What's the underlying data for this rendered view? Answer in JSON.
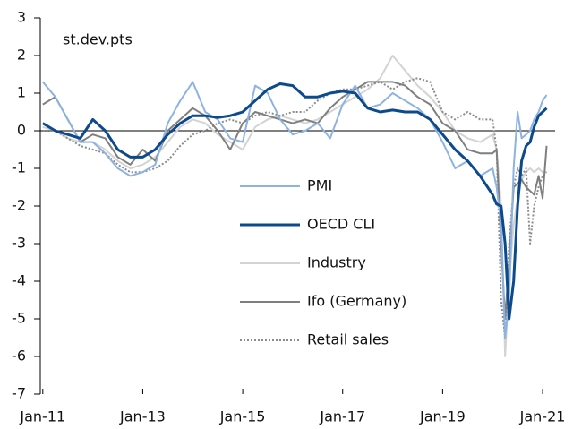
{
  "chart_data": {
    "type": "line",
    "annotation": "st.dev.pts",
    "x": [
      2011,
      2011.25,
      2011.5,
      2011.75,
      2012,
      2012.25,
      2012.5,
      2012.75,
      2013,
      2013.25,
      2013.5,
      2013.75,
      2014,
      2014.25,
      2014.5,
      2014.75,
      2015,
      2015.25,
      2015.5,
      2015.75,
      2016,
      2016.25,
      2016.5,
      2016.75,
      2017,
      2017.25,
      2017.5,
      2017.75,
      2018,
      2018.25,
      2018.5,
      2018.75,
      2019,
      2019.25,
      2019.5,
      2019.75,
      2020,
      2020.08,
      2020.17,
      2020.25,
      2020.33,
      2020.42,
      2020.5,
      2020.58,
      2020.67,
      2020.75,
      2020.83,
      2020.92,
      2021,
      2021.08
    ],
    "series": [
      {
        "name": "PMI",
        "color": "#8db3e2",
        "width": 2,
        "dash": false,
        "values": [
          1.3,
          0.9,
          0.3,
          -0.3,
          -0.3,
          -0.6,
          -1.0,
          -1.2,
          -1.1,
          -0.9,
          0.2,
          0.8,
          1.3,
          0.5,
          0.3,
          -0.2,
          -0.3,
          1.2,
          1.0,
          0.3,
          -0.1,
          0.0,
          0.2,
          -0.2,
          0.7,
          1.2,
          0.6,
          0.7,
          1.0,
          0.8,
          0.6,
          0.3,
          -0.3,
          -1.0,
          -0.8,
          -1.2,
          -1.0,
          -1.5,
          -2.5,
          -5.5,
          -4.5,
          -1.0,
          0.5,
          -0.2,
          -0.1,
          0.0,
          0.3,
          0.5,
          0.8,
          0.95
        ]
      },
      {
        "name": "OECD CLI",
        "color": "#0c4a8c",
        "width": 3,
        "dash": false,
        "values": [
          0.2,
          0.0,
          -0.1,
          -0.2,
          0.3,
          0.0,
          -0.5,
          -0.7,
          -0.7,
          -0.5,
          -0.1,
          0.2,
          0.4,
          0.4,
          0.35,
          0.4,
          0.5,
          0.8,
          1.1,
          1.25,
          1.2,
          0.9,
          0.9,
          1.0,
          1.05,
          1.0,
          0.6,
          0.5,
          0.55,
          0.5,
          0.5,
          0.3,
          -0.1,
          -0.5,
          -0.8,
          -1.2,
          -1.7,
          -1.95,
          -2.0,
          -3.0,
          -5.0,
          -4.0,
          -2.0,
          -0.8,
          -0.4,
          -0.3,
          0.1,
          0.4,
          0.5,
          0.6
        ]
      },
      {
        "name": "Industry",
        "color": "#d3d3d3",
        "width": 2,
        "dash": false,
        "values": [
          0.1,
          0.0,
          -0.2,
          -0.3,
          -0.3,
          -0.5,
          -0.8,
          -1.0,
          -0.9,
          -0.7,
          -0.3,
          0.1,
          0.3,
          0.2,
          -0.1,
          -0.3,
          -0.5,
          0.1,
          0.3,
          0.4,
          0.3,
          0.2,
          0.3,
          0.5,
          0.7,
          0.9,
          1.1,
          1.4,
          2.0,
          1.6,
          1.2,
          0.9,
          0.5,
          0.0,
          -0.2,
          -0.3,
          -0.1,
          -0.5,
          -2.0,
          -6.0,
          -4.0,
          -2.5,
          -1.8,
          -1.3,
          -1.1,
          -1.0,
          -1.1,
          -1.0,
          -1.1,
          -1.1
        ]
      },
      {
        "name": "Ifo (Germany)",
        "color": "#7f7f7f",
        "width": 2,
        "dash": false,
        "values": [
          0.7,
          0.9,
          0.3,
          -0.3,
          -0.1,
          -0.2,
          -0.7,
          -0.9,
          -0.5,
          -0.8,
          0.0,
          0.3,
          0.6,
          0.4,
          0.0,
          -0.5,
          0.2,
          0.5,
          0.4,
          0.3,
          0.2,
          0.3,
          0.2,
          0.6,
          0.9,
          1.1,
          1.3,
          1.3,
          1.3,
          1.2,
          0.9,
          0.7,
          0.2,
          0.0,
          -0.5,
          -0.6,
          -0.6,
          -0.5,
          -3.0,
          -5.0,
          -3.5,
          -1.5,
          -1.4,
          -1.3,
          -1.5,
          -1.6,
          -1.7,
          -1.2,
          -1.8,
          -0.4
        ]
      },
      {
        "name": "Retail sales",
        "color": "#8c8c8c",
        "width": 2,
        "dash": true,
        "values": [
          0.0,
          0.0,
          -0.2,
          -0.4,
          -0.5,
          -0.6,
          -0.9,
          -1.1,
          -1.1,
          -1.0,
          -0.8,
          -0.4,
          -0.1,
          0.0,
          0.2,
          0.3,
          0.2,
          0.4,
          0.5,
          0.4,
          0.5,
          0.5,
          0.8,
          1.0,
          1.1,
          1.1,
          1.2,
          1.3,
          1.1,
          1.3,
          1.4,
          1.3,
          0.5,
          0.3,
          0.5,
          0.3,
          0.3,
          -0.5,
          -4.5,
          -5.5,
          -3.0,
          -1.5,
          -1.0,
          -1.2,
          -1.0,
          -3.0,
          -2.0,
          -1.5,
          -1.2,
          -1.1
        ]
      }
    ],
    "xlim": [
      2010.95,
      2021.25
    ],
    "xticks": [
      {
        "value": 2011,
        "label": "Jan-11"
      },
      {
        "value": 2013,
        "label": "Jan-13"
      },
      {
        "value": 2015,
        "label": "Jan-15"
      },
      {
        "value": 2017,
        "label": "Jan-17"
      },
      {
        "value": 2019,
        "label": "Jan-19"
      },
      {
        "value": 2021,
        "label": "Jan-21"
      }
    ],
    "ylim": [
      -7,
      3
    ],
    "yticks": [
      -7,
      -6,
      -5,
      -4,
      -3,
      -2,
      -1,
      0,
      1,
      2,
      3
    ],
    "grid": false,
    "legend": "center"
  }
}
